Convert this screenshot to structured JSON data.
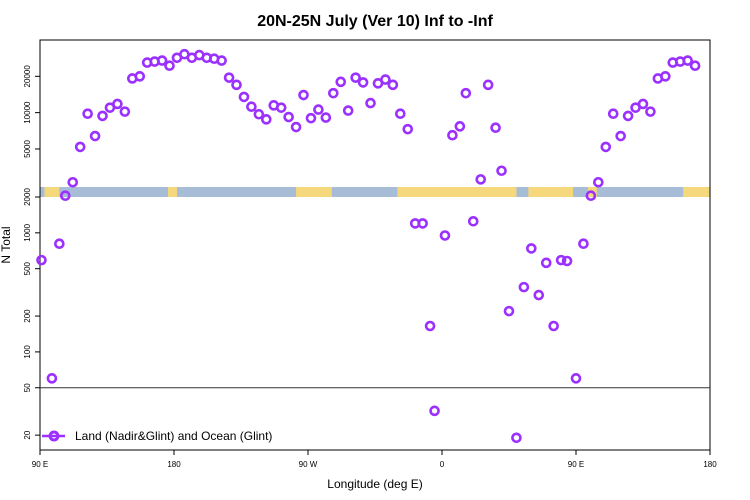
{
  "chart_data": {
    "type": "scatter",
    "title": "20N-25N July (Ver 10)   Inf to -Inf",
    "xlabel": "Longitude (deg E)",
    "ylabel": "N Total",
    "log_scale_y": true,
    "grid": false,
    "legend_position": "bottom-left",
    "colors": {
      "series": "#9b30ff",
      "ocean_band": "#a7bcd6",
      "land_band": "#f5d77c",
      "reference_line": "#333333"
    },
    "x_ticks": [
      {
        "value": 90,
        "label": "90 E"
      },
      {
        "value": 180,
        "label": "180"
      },
      {
        "value": 270,
        "label": "90 W"
      },
      {
        "value": 360,
        "label": "0"
      },
      {
        "value": 450,
        "label": "90 E"
      },
      {
        "value": 540,
        "label": "180"
      }
    ],
    "xlim": [
      90,
      540
    ],
    "upper_panel": {
      "ylim": [
        2000,
        40000
      ],
      "y_ticks": [
        {
          "value": 2000,
          "label": "2000"
        },
        {
          "value": 5000,
          "label": "5000"
        },
        {
          "value": 10000,
          "label": "10000"
        },
        {
          "value": 20000,
          "label": "20000"
        }
      ]
    },
    "lower_panel": {
      "ylim": [
        15,
        2000
      ],
      "reference_line_y": 50,
      "y_ticks": [
        {
          "value": 20,
          "label": "20"
        },
        {
          "value": 50,
          "label": "50"
        },
        {
          "value": 100,
          "label": "100"
        },
        {
          "value": 200,
          "label": "200"
        },
        {
          "value": 500,
          "label": "500"
        },
        {
          "value": 1000,
          "label": "1000"
        },
        {
          "value": 2000,
          "label": "2000"
        }
      ]
    },
    "series": [
      {
        "name": "Land (Nadir&Glint) and Ocean (Glint)",
        "points": [
          [
            91,
            590
          ],
          [
            98,
            60
          ],
          [
            103,
            810
          ],
          [
            107,
            2050
          ],
          [
            112,
            2650
          ],
          [
            117,
            5200
          ],
          [
            122,
            9800
          ],
          [
            127,
            6400
          ],
          [
            132,
            9400
          ],
          [
            137,
            11000
          ],
          [
            142,
            11800
          ],
          [
            147,
            10200
          ],
          [
            152,
            19200
          ],
          [
            157,
            20000
          ],
          [
            162,
            26000
          ],
          [
            167,
            26500
          ],
          [
            172,
            27000
          ],
          [
            177,
            24500
          ],
          [
            182,
            28500
          ],
          [
            187,
            30500
          ],
          [
            192,
            28500
          ],
          [
            197,
            30000
          ],
          [
            202,
            28500
          ],
          [
            207,
            28000
          ],
          [
            212,
            27000
          ],
          [
            217,
            19500
          ],
          [
            222,
            17000
          ],
          [
            227,
            13500
          ],
          [
            232,
            11200
          ],
          [
            237,
            9700
          ],
          [
            242,
            8800
          ],
          [
            247,
            11500
          ],
          [
            252,
            11000
          ],
          [
            257,
            9200
          ],
          [
            262,
            7600
          ],
          [
            267,
            14000
          ],
          [
            272,
            9000
          ],
          [
            277,
            10600
          ],
          [
            282,
            9100
          ],
          [
            287,
            14500
          ],
          [
            292,
            18000
          ],
          [
            297,
            10400
          ],
          [
            302,
            19500
          ],
          [
            307,
            17800
          ],
          [
            312,
            12000
          ],
          [
            317,
            17500
          ],
          [
            322,
            18800
          ],
          [
            327,
            17000
          ],
          [
            332,
            9800
          ],
          [
            337,
            7300
          ],
          [
            342,
            1200
          ],
          [
            347,
            1200
          ],
          [
            352,
            165
          ],
          [
            355,
            32
          ],
          [
            362,
            950
          ],
          [
            367,
            6500
          ],
          [
            372,
            7700
          ],
          [
            376,
            14500
          ],
          [
            381,
            1250
          ],
          [
            386,
            2800
          ],
          [
            391,
            17000
          ],
          [
            396,
            7500
          ],
          [
            400,
            3300
          ],
          [
            405,
            220
          ],
          [
            410,
            19
          ],
          [
            415,
            350
          ],
          [
            420,
            740
          ],
          [
            425,
            300
          ],
          [
            430,
            560
          ],
          [
            435,
            165
          ],
          [
            440,
            590
          ],
          [
            444,
            580
          ],
          [
            450,
            60
          ],
          [
            455,
            810
          ],
          [
            460,
            2050
          ],
          [
            465,
            2650
          ],
          [
            470,
            5200
          ],
          [
            475,
            9800
          ],
          [
            480,
            6400
          ],
          [
            485,
            9400
          ],
          [
            490,
            11000
          ],
          [
            495,
            11800
          ],
          [
            500,
            10200
          ],
          [
            505,
            19200
          ],
          [
            510,
            20000
          ],
          [
            515,
            26000
          ],
          [
            520,
            26500
          ],
          [
            525,
            27000
          ],
          [
            530,
            24500
          ]
        ]
      }
    ]
  }
}
